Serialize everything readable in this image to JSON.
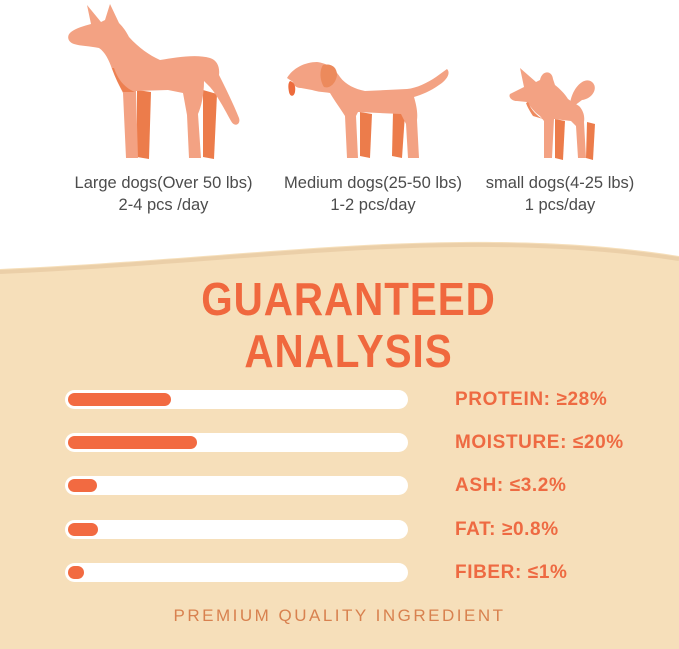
{
  "feeding_guide": {
    "items": [
      {
        "icon": "large-dog",
        "label": "Large dogs(Over 50 lbs)",
        "amount": "2-4 pcs /day"
      },
      {
        "icon": "medium-dog",
        "label": "Medium dogs(25-50 lbs)",
        "amount": "1-2 pcs/day"
      },
      {
        "icon": "small-dog",
        "label": "small dogs(4-25 lbs)",
        "amount": "1 pcs/day"
      }
    ]
  },
  "analysis": {
    "title_line1": "GUARANTEED",
    "title_line2": "ANALYSIS",
    "footer": "PREMIUM QUALITY INGREDIENT",
    "nutrients": [
      {
        "label": "PROTEIN: ≥28%",
        "name": "Protein",
        "constraint": "≥",
        "value": 28,
        "unit": "%",
        "bar_fill_pct": 30
      },
      {
        "label": "MOISTURE: ≤20%",
        "name": "Moisture",
        "constraint": "≤",
        "value": 20,
        "unit": "%",
        "bar_fill_pct": 37.5
      },
      {
        "label": "ASH: ≤3.2%",
        "name": "Ash",
        "constraint": "≤",
        "value": 3.2,
        "unit": "%",
        "bar_fill_pct": 8.4
      },
      {
        "label": "FAT: ≥0.8%",
        "name": "Fat",
        "constraint": "≥",
        "value": 0.8,
        "unit": "%",
        "bar_fill_pct": 8.7
      },
      {
        "label": "FIBER: ≤1%",
        "name": "Fiber",
        "constraint": "≤",
        "value": 1,
        "unit": "%",
        "bar_fill_pct": 4.8
      }
    ]
  },
  "chart_data": {
    "type": "bar",
    "orientation": "horizontal",
    "title": "GUARANTEED ANALYSIS",
    "categories": [
      "Protein",
      "Moisture",
      "Ash",
      "Fat",
      "Fiber"
    ],
    "values": [
      28,
      20,
      3.2,
      0.8,
      1
    ],
    "value_labels": [
      "≥28%",
      "≤20%",
      "≤3.2%",
      "≥0.8%",
      "≤1%"
    ],
    "bar_fill_percent_of_track": [
      30,
      37.5,
      8.4,
      8.7,
      4.8
    ],
    "legend": "none",
    "grid": false
  },
  "colors": {
    "panel_tan": "#F6DFBA",
    "panel_edge_shadow": "#E4C59C",
    "accent_orange": "#F0683E",
    "bar_fill_orange": "#F26A41",
    "bar_track_white": "#FFFFFF",
    "dog_body": "#F3A283",
    "dog_accent": "#EC7C4B",
    "caption_text": "#4C4C4C",
    "footer_text": "#D8814F"
  }
}
